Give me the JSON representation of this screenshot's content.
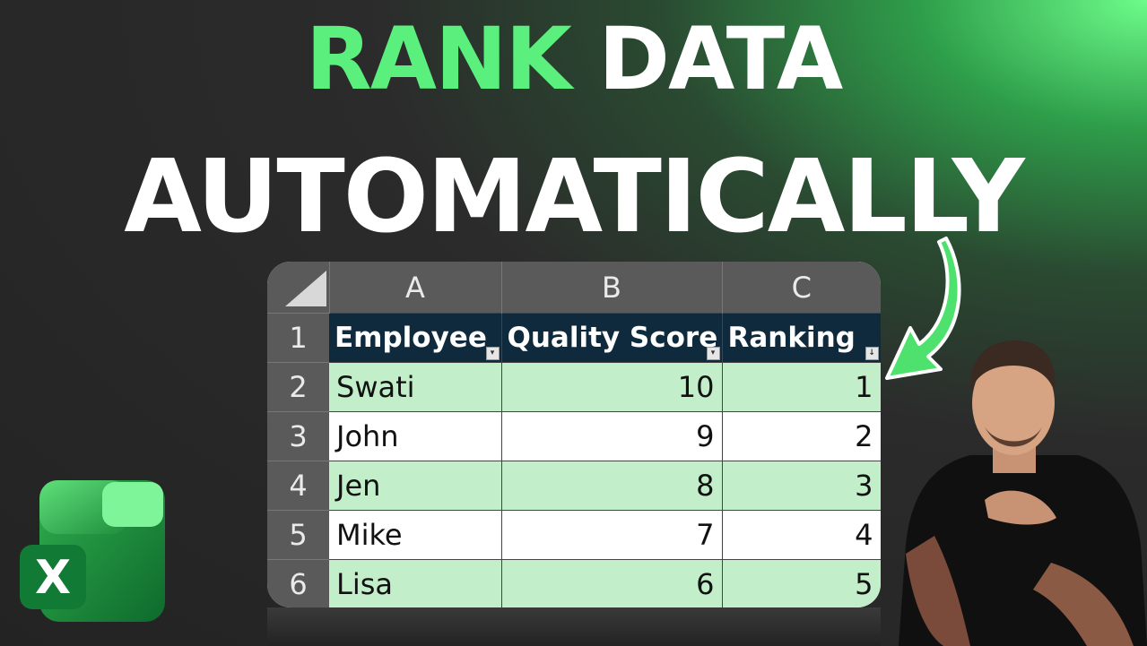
{
  "colors": {
    "accent": "#5bf07d",
    "header_bg": "#0f2a3d",
    "band": "#c2efc9"
  },
  "title": {
    "word1": "RANK",
    "word2": "DATA",
    "line2": "AUTOMATICALLY"
  },
  "sheet": {
    "columns": [
      "A",
      "B",
      "C"
    ],
    "row_numbers": [
      "1",
      "2",
      "3",
      "4",
      "5",
      "6"
    ],
    "headers": [
      "Employee",
      "Quality Score",
      "Ranking"
    ],
    "rows": [
      {
        "employee": "Swati",
        "score": "10",
        "rank": "1"
      },
      {
        "employee": "John",
        "score": "9",
        "rank": "2"
      },
      {
        "employee": "Jen",
        "score": "8",
        "rank": "3"
      },
      {
        "employee": "Mike",
        "score": "7",
        "rank": "4"
      },
      {
        "employee": "Lisa",
        "score": "6",
        "rank": "5"
      }
    ]
  },
  "icons": {
    "logo": "excel-logo-icon",
    "arrow": "curved-arrow-icon",
    "filter": "filter-dropdown-icon"
  },
  "logo_letter": "X"
}
